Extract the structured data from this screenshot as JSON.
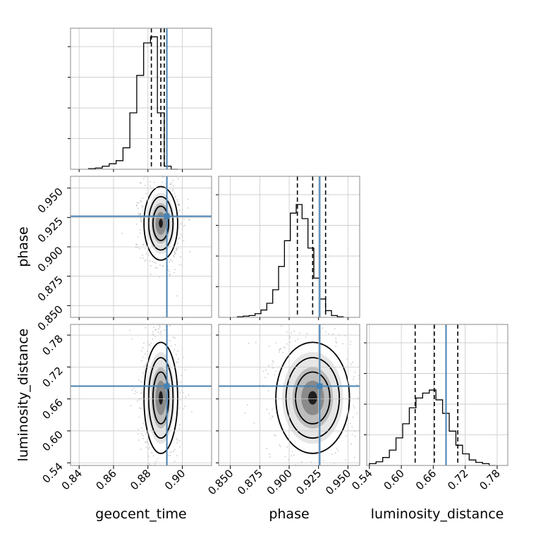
{
  "chart_data": {
    "type": "corner",
    "parameters": [
      "geocent_time",
      "phase",
      "luminosity_distance"
    ],
    "truths": {
      "geocent_time": 0.891,
      "phase": 0.926,
      "luminosity_distance": 0.684
    },
    "quantiles": {
      "geocent_time": [
        0.882,
        0.8875,
        0.8895
      ],
      "phase": [
        0.907,
        0.92,
        0.931
      ],
      "luminosity_distance": [
        0.626,
        0.662,
        0.706
      ]
    },
    "ranges": {
      "geocent_time": [
        0.835,
        0.917
      ],
      "phase": [
        0.84,
        0.96
      ],
      "luminosity_distance": [
        0.535,
        0.8
      ]
    },
    "ticks": {
      "geocent_time": [
        "0.84",
        "0.86",
        "0.88",
        "0.90"
      ],
      "phase": [
        "0.850",
        "0.875",
        "0.900",
        "0.925",
        "0.950"
      ],
      "luminosity_distance": [
        "0.54",
        "0.60",
        "0.66",
        "0.72",
        "0.78"
      ]
    },
    "histograms": {
      "geocent_time": {
        "x0": 0.8455,
        "width": 0.004,
        "counts": [
          0.01,
          0.02,
          0.05,
          0.09,
          0.14,
          0.35,
          0.92,
          1.53,
          2.06,
          2.16,
          0.92,
          0.05,
          0.0
        ]
      },
      "phase": {
        "x0": 0.856,
        "width": 0.005,
        "counts": [
          0.01,
          0.02,
          0.03,
          0.06,
          0.12,
          0.23,
          0.45,
          0.83,
          1.25,
          1.7,
          1.84,
          1.61,
          1.13,
          0.64,
          0.3,
          0.11,
          0.03,
          0.01
        ]
      },
      "luminosity_distance": {
        "x0": 0.54,
        "width": 0.0125,
        "counts": [
          0.03,
          0.06,
          0.13,
          0.25,
          0.45,
          0.68,
          0.94,
          1.1,
          1.18,
          1.23,
          1.07,
          0.85,
          0.56,
          0.33,
          0.19,
          0.09,
          0.05,
          0.03,
          0.0
        ]
      }
    },
    "grid": true,
    "colors": {
      "truth": "#4682b4",
      "contour": "#000000",
      "scatter": "#808080"
    }
  }
}
